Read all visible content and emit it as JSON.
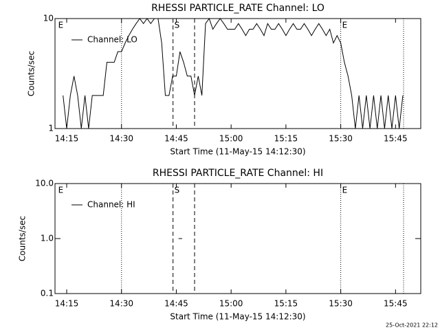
{
  "chart_data": [
    {
      "type": "line",
      "title": "RHESSI PARTICLE_RATE Channel: LO",
      "xlabel": "Start Time (11-May-15 14:12:30)",
      "ylabel": "Counts/sec",
      "log_y": true,
      "xlim": [
        851.8,
        951.9
      ],
      "ylim": [
        1,
        10
      ],
      "xticks": [
        {
          "value": 855,
          "label": "14:15"
        },
        {
          "value": 870,
          "label": "14:30"
        },
        {
          "value": 885,
          "label": "14:45"
        },
        {
          "value": 900,
          "label": "15:00"
        },
        {
          "value": 915,
          "label": "15:15"
        },
        {
          "value": 930,
          "label": "15:30"
        },
        {
          "value": 945,
          "label": "15:45"
        }
      ],
      "yticks": [
        1,
        10
      ],
      "events": [
        {
          "x": 870,
          "style": "dotted"
        },
        {
          "x": 884.1,
          "style": "dashed"
        },
        {
          "x": 890,
          "style": "dashed"
        },
        {
          "x": 930,
          "style": "dotted"
        },
        {
          "x": 947.2,
          "style": "dotted"
        }
      ],
      "event_labels": [
        {
          "x": 852.3,
          "text": "E"
        },
        {
          "x": 884.1,
          "text": "S"
        },
        {
          "x": 930,
          "text": "E"
        }
      ],
      "x": [
        854,
        855,
        856,
        857,
        858,
        859,
        860,
        861,
        862,
        863,
        864,
        865,
        866,
        867,
        868,
        869,
        870,
        871,
        872,
        873,
        874,
        875,
        876,
        877,
        878,
        879,
        880,
        881,
        882,
        883,
        884,
        885,
        886,
        887,
        888,
        889,
        890,
        891,
        892,
        893,
        894,
        895,
        896,
        897,
        898,
        899,
        900,
        901,
        902,
        903,
        904,
        905,
        906,
        907,
        908,
        909,
        910,
        911,
        912,
        913,
        914,
        915,
        916,
        917,
        918,
        919,
        920,
        921,
        922,
        923,
        924,
        925,
        926,
        927,
        928,
        929,
        930,
        931,
        932,
        933,
        934,
        935,
        936,
        937,
        938,
        939,
        940,
        941,
        942,
        943,
        944,
        945,
        946,
        947
      ],
      "series": [
        {
          "name": "Channel: LO",
          "color": "#000000",
          "values": [
            2,
            1,
            2,
            3,
            2,
            1,
            2,
            1,
            2,
            2,
            2,
            2,
            4,
            4,
            4,
            5,
            5,
            6,
            7,
            8,
            9,
            10,
            9,
            10,
            9,
            10,
            10,
            6,
            2,
            2,
            3,
            3,
            5,
            4,
            3,
            3,
            2,
            3,
            2,
            9,
            10,
            8,
            9,
            10,
            9,
            8,
            8,
            8,
            9,
            8,
            7,
            8,
            8,
            9,
            8,
            7,
            9,
            8,
            8,
            9,
            8,
            7,
            8,
            9,
            8,
            8,
            9,
            8,
            7,
            8,
            9,
            8,
            7,
            8,
            6,
            7,
            6,
            4,
            3,
            2,
            1,
            2,
            1,
            2,
            1,
            2,
            1,
            2,
            1,
            2,
            1,
            2,
            1,
            2
          ]
        }
      ]
    },
    {
      "type": "line",
      "title": "RHESSI PARTICLE_RATE Channel: HI",
      "xlabel": "Start Time (11-May-15 14:12:30)",
      "ylabel": "Counts/sec",
      "log_y": true,
      "xlim": [
        851.8,
        951.9
      ],
      "ylim": [
        0.1,
        10
      ],
      "xticks": [
        {
          "value": 855,
          "label": "14:15"
        },
        {
          "value": 870,
          "label": "14:30"
        },
        {
          "value": 885,
          "label": "14:45"
        },
        {
          "value": 900,
          "label": "15:00"
        },
        {
          "value": 915,
          "label": "15:15"
        },
        {
          "value": 930,
          "label": "15:30"
        },
        {
          "value": 945,
          "label": "15:45"
        }
      ],
      "yticks": [
        0.1,
        {
          "value": 1,
          "label": "1.0"
        },
        {
          "value": 10,
          "label": "10.0"
        }
      ],
      "events": [
        {
          "x": 870,
          "style": "dotted"
        },
        {
          "x": 884.1,
          "style": "dashed"
        },
        {
          "x": 890,
          "style": "dashed"
        },
        {
          "x": 930,
          "style": "dotted"
        },
        {
          "x": 947.2,
          "style": "dotted"
        }
      ],
      "event_labels": [
        {
          "x": 852.3,
          "text": "E"
        },
        {
          "x": 884.1,
          "text": "S"
        },
        {
          "x": 930,
          "text": "E"
        }
      ],
      "x": [
        885.6,
        886.6
      ],
      "series": [
        {
          "name": "Channel: HI",
          "color": "#000000",
          "values": [
            1,
            1
          ]
        }
      ]
    }
  ],
  "footer": "25-Oct-2021 22:12"
}
